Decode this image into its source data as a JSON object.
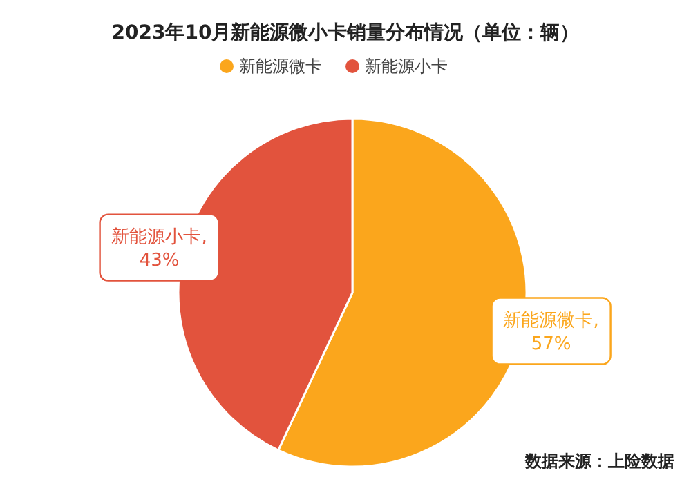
{
  "chart_data": {
    "type": "pie",
    "title": "2023年10月新能源微小卡销量分布情况（单位：辆）",
    "categories": [
      "新能源微卡",
      "新能源小卡"
    ],
    "values": [
      57,
      43
    ],
    "colors": [
      "#fba61c",
      "#e2533d"
    ],
    "value_labels": [
      "新能源微卡, 57%",
      "新能源小卡, 43%"
    ],
    "legend": "top",
    "annotations": [
      "数据来源：上险数据"
    ]
  }
}
